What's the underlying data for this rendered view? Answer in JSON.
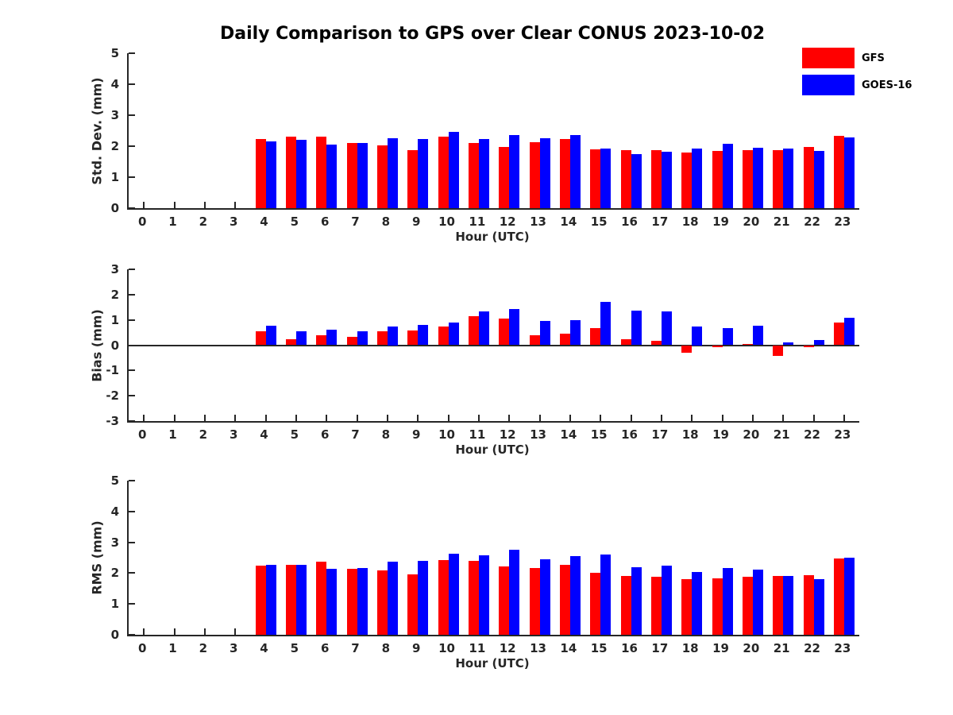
{
  "title": "Daily Comparison to GPS over Clear CONUS 2023-10-02",
  "xlabel": "Hour (UTC)",
  "colors": {
    "gfs": "#ff0000",
    "goes16": "#0000ff",
    "axis": "#262626"
  },
  "legend": [
    {
      "label": "GFS",
      "color": "#ff0000"
    },
    {
      "label": "GOES-16",
      "color": "#0000ff"
    }
  ],
  "chart_data": [
    {
      "type": "bar",
      "id": "stddev",
      "ylabel": "Std. Dev. (mm)",
      "xlabel": "Hour (UTC)",
      "ylim": [
        0,
        5
      ],
      "yticks": [
        0,
        1,
        2,
        3,
        4,
        5
      ],
      "categories": [
        "0",
        "1",
        "2",
        "3",
        "4",
        "5",
        "6",
        "7",
        "8",
        "9",
        "10",
        "11",
        "12",
        "13",
        "14",
        "15",
        "16",
        "17",
        "18",
        "19",
        "20",
        "21",
        "22",
        "23"
      ],
      "series": [
        {
          "name": "GFS",
          "color": "#ff0000",
          "values": [
            null,
            null,
            null,
            null,
            2.22,
            2.3,
            2.32,
            2.09,
            2.02,
            1.88,
            2.3,
            2.11,
            1.97,
            2.12,
            2.22,
            1.9,
            1.88,
            1.86,
            1.8,
            1.84,
            1.88,
            1.86,
            1.97,
            2.34
          ]
        },
        {
          "name": "GOES-16",
          "color": "#0000ff",
          "values": [
            null,
            null,
            null,
            null,
            2.15,
            2.21,
            2.04,
            2.09,
            2.25,
            2.24,
            2.46,
            2.22,
            2.36,
            2.26,
            2.35,
            1.93,
            1.74,
            1.82,
            1.92,
            2.08,
            1.95,
            1.92,
            1.85,
            2.29
          ]
        }
      ]
    },
    {
      "type": "bar",
      "id": "bias",
      "ylabel": "Bias (mm)",
      "xlabel": "Hour (UTC)",
      "ylim": [
        -3,
        3
      ],
      "yticks": [
        -3,
        -2,
        -1,
        0,
        1,
        2,
        3
      ],
      "zero_line": true,
      "categories": [
        "0",
        "1",
        "2",
        "3",
        "4",
        "5",
        "6",
        "7",
        "8",
        "9",
        "10",
        "11",
        "12",
        "13",
        "14",
        "15",
        "16",
        "17",
        "18",
        "19",
        "20",
        "21",
        "22",
        "23"
      ],
      "series": [
        {
          "name": "GFS",
          "color": "#ff0000",
          "values": [
            null,
            null,
            null,
            null,
            0.54,
            0.22,
            0.38,
            0.32,
            0.54,
            0.57,
            0.73,
            1.14,
            1.04,
            0.4,
            0.46,
            0.69,
            0.25,
            0.17,
            -0.29,
            -0.08,
            0.06,
            -0.42,
            -0.08,
            0.9
          ]
        },
        {
          "name": "GOES-16",
          "color": "#0000ff",
          "values": [
            null,
            null,
            null,
            null,
            0.78,
            0.56,
            0.6,
            0.56,
            0.75,
            0.8,
            0.9,
            1.32,
            1.42,
            0.97,
            0.98,
            1.71,
            1.38,
            1.34,
            0.75,
            0.68,
            0.77,
            0.1,
            0.21,
            1.08
          ]
        }
      ]
    },
    {
      "type": "bar",
      "id": "rms",
      "ylabel": "RMS (mm)",
      "xlabel": "Hour (UTC)",
      "ylim": [
        0,
        5
      ],
      "yticks": [
        0,
        1,
        2,
        3,
        4,
        5
      ],
      "categories": [
        "0",
        "1",
        "2",
        "3",
        "4",
        "5",
        "6",
        "7",
        "8",
        "9",
        "10",
        "11",
        "12",
        "13",
        "14",
        "15",
        "16",
        "17",
        "18",
        "19",
        "20",
        "21",
        "22",
        "23"
      ],
      "series": [
        {
          "name": "GFS",
          "color": "#ff0000",
          "values": [
            null,
            null,
            null,
            null,
            2.25,
            2.28,
            2.37,
            2.14,
            2.08,
            1.97,
            2.42,
            2.4,
            2.22,
            2.16,
            2.27,
            2.01,
            1.9,
            1.87,
            1.81,
            1.82,
            1.87,
            1.91,
            1.93,
            2.48
          ]
        },
        {
          "name": "GOES-16",
          "color": "#0000ff",
          "values": [
            null,
            null,
            null,
            null,
            2.28,
            2.27,
            2.13,
            2.16,
            2.37,
            2.39,
            2.62,
            2.57,
            2.75,
            2.46,
            2.55,
            2.6,
            2.18,
            2.25,
            2.03,
            2.17,
            2.11,
            1.91,
            1.81,
            2.51
          ]
        }
      ]
    }
  ]
}
